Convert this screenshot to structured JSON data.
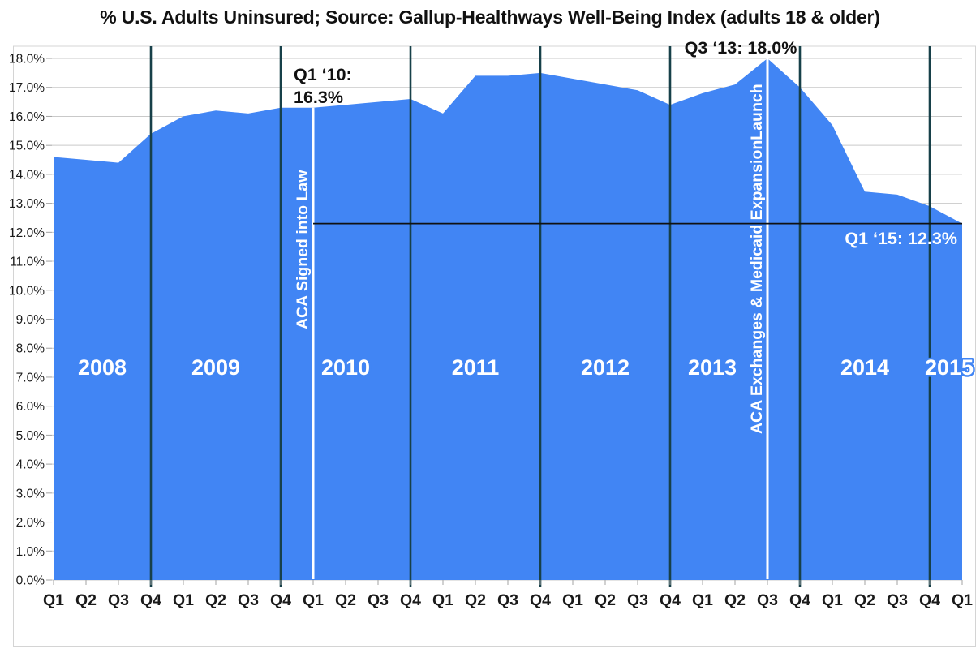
{
  "chart_data": {
    "type": "area",
    "title": "% U.S. Adults Uninsured; Source: Gallup-Healthways Well-Being Index (adults 18 & older)",
    "x_labels": [
      "Q1",
      "Q2",
      "Q3",
      "Q4",
      "Q1",
      "Q2",
      "Q3",
      "Q4",
      "Q1",
      "Q2",
      "Q3",
      "Q4",
      "Q1",
      "Q2",
      "Q3",
      "Q4",
      "Q1",
      "Q2",
      "Q3",
      "Q4",
      "Q1",
      "Q2",
      "Q3",
      "Q4",
      "Q1",
      "Q2",
      "Q3",
      "Q4",
      "Q1"
    ],
    "values": [
      14.6,
      14.5,
      14.4,
      15.4,
      16.0,
      16.2,
      16.1,
      16.3,
      16.3,
      16.4,
      16.5,
      16.6,
      16.1,
      17.4,
      17.4,
      17.5,
      17.3,
      17.1,
      16.9,
      16.4,
      16.8,
      17.1,
      18.0,
      17.0,
      15.7,
      13.4,
      13.3,
      12.9,
      12.3
    ],
    "ylim": [
      0,
      18
    ],
    "ytick_step": 1,
    "y_tick_labels": [
      "0.0%",
      "1.0%",
      "2.0%",
      "3.0%",
      "4.0%",
      "5.0%",
      "6.0%",
      "7.0%",
      "8.0%",
      "9.0%",
      "10.0%",
      "11.0%",
      "12.0%",
      "13.0%",
      "14.0%",
      "15.0%",
      "16.0%",
      "17.0%",
      "18.0%"
    ],
    "grid": true,
    "legend": "none",
    "year_labels": [
      {
        "text": "2008",
        "pos": 1.5
      },
      {
        "text": "2009",
        "pos": 5.0
      },
      {
        "text": "2010",
        "pos": 9.0
      },
      {
        "text": "2011",
        "pos": 13.0
      },
      {
        "text": "2012",
        "pos": 17.0
      },
      {
        "text": "2013",
        "pos": 20.3
      },
      {
        "text": "2014",
        "pos": 25.0
      },
      {
        "text": "2015",
        "pos": 27.6
      }
    ],
    "year_divider_indices": [
      3,
      7,
      11,
      15,
      19,
      23,
      27
    ],
    "event_lines": [
      {
        "index": 8,
        "label": "ACA Signed into Law"
      },
      {
        "index": 22,
        "label": "ACA Exchanges & Medicaid ExpansionLaunch"
      }
    ],
    "annotations": [
      {
        "id": "q1-10",
        "lines": [
          "Q1 ‘10:",
          "16.3%"
        ],
        "color": "dark"
      },
      {
        "id": "q3-13",
        "lines": [
          "Q3 ‘13: 18.0%"
        ],
        "color": "dark"
      },
      {
        "id": "q1-15",
        "lines": [
          "Q1 ‘15: 12.3%"
        ],
        "color": "light"
      }
    ],
    "reference_line": {
      "value": 12.3,
      "from_index": 8,
      "to_index": 28
    },
    "colors": {
      "area": "#4185f4",
      "year_divider": "#174049",
      "event_line": "#ffffff",
      "reference_line": "#111111",
      "grid": "#c9c9c9",
      "border": "#d4d4d4",
      "text": "#1a1a1a"
    }
  }
}
